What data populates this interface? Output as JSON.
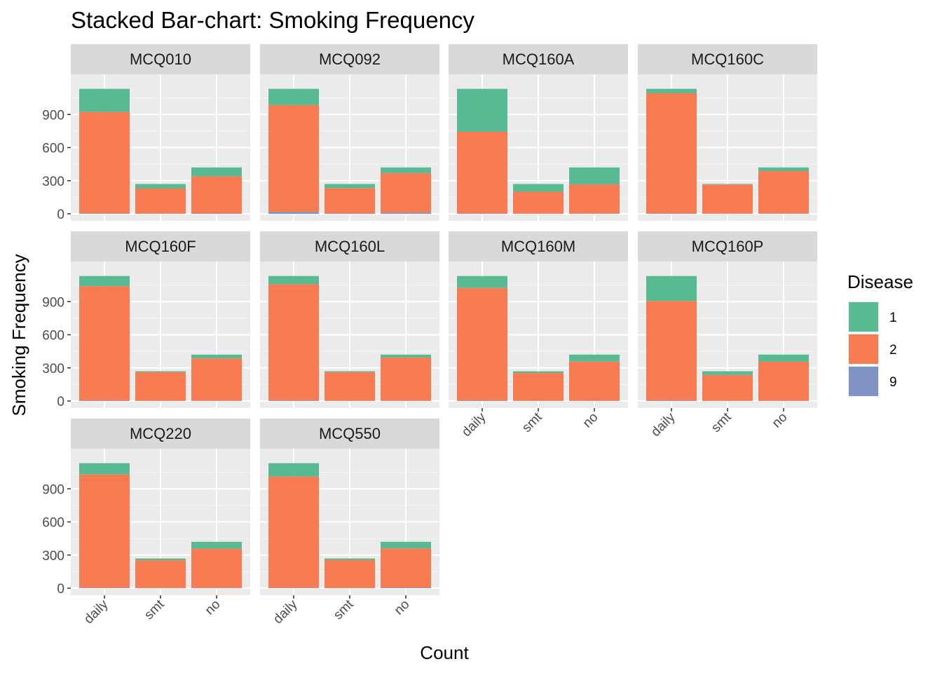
{
  "chart_data": {
    "type": "bar",
    "stacked": true,
    "title": "Stacked Bar-chart: Smoking Frequency",
    "xlabel": "Count",
    "ylabel": "Smoking Frequency",
    "categories": [
      "daily",
      "smt",
      "no"
    ],
    "yticks": [
      0,
      300,
      600,
      900
    ],
    "ylim": [
      0,
      1200
    ],
    "legend": {
      "title": "Disease",
      "position": "right",
      "entries": [
        {
          "label": "1",
          "color": "#57BA93"
        },
        {
          "label": "2",
          "color": "#F97B52"
        },
        {
          "label": "9",
          "color": "#7F93C4"
        }
      ]
    },
    "panels": [
      {
        "name": "MCQ010",
        "series": [
          {
            "name": "9",
            "values": [
              5,
              2,
              3
            ]
          },
          {
            "name": "2",
            "values": [
              918,
              227,
              337
            ]
          },
          {
            "name": "1",
            "values": [
              209,
              41,
              80
            ]
          }
        ]
      },
      {
        "name": "MCQ092",
        "series": [
          {
            "name": "9",
            "values": [
              18,
              3,
              12
            ]
          },
          {
            "name": "2",
            "values": [
              967,
              230,
              357
            ]
          },
          {
            "name": "1",
            "values": [
              147,
              37,
              51
            ]
          }
        ]
      },
      {
        "name": "MCQ160A",
        "series": [
          {
            "name": "9",
            "values": [
              4,
              1,
              2
            ]
          },
          {
            "name": "2",
            "values": [
              739,
              199,
              265
            ]
          },
          {
            "name": "1",
            "values": [
              389,
              70,
              153
            ]
          }
        ]
      },
      {
        "name": "MCQ160C",
        "series": [
          {
            "name": "9",
            "values": [
              4,
              1,
              2
            ]
          },
          {
            "name": "2",
            "values": [
              1088,
              264,
              385
            ]
          },
          {
            "name": "1",
            "values": [
              40,
              5,
              33
            ]
          }
        ]
      },
      {
        "name": "MCQ160F",
        "series": [
          {
            "name": "9",
            "values": [
              4,
              1,
              2
            ]
          },
          {
            "name": "2",
            "values": [
              1036,
              260,
              384
            ]
          },
          {
            "name": "1",
            "values": [
              92,
              9,
              34
            ]
          }
        ]
      },
      {
        "name": "MCQ160L",
        "series": [
          {
            "name": "9",
            "values": [
              4,
              1,
              2
            ]
          },
          {
            "name": "2",
            "values": [
              1054,
              260,
              392
            ]
          },
          {
            "name": "1",
            "values": [
              74,
              9,
              26
            ]
          }
        ]
      },
      {
        "name": "MCQ160M",
        "series": [
          {
            "name": "9",
            "values": [
              4,
              1,
              2
            ]
          },
          {
            "name": "2",
            "values": [
              1020,
              252,
              355
            ]
          },
          {
            "name": "1",
            "values": [
              108,
              16,
              63
            ]
          }
        ]
      },
      {
        "name": "MCQ160P",
        "series": [
          {
            "name": "9",
            "values": [
              4,
              1,
              2
            ]
          },
          {
            "name": "2",
            "values": [
              902,
              235,
              354
            ]
          },
          {
            "name": "1",
            "values": [
              226,
              33,
              64
            ]
          }
        ]
      },
      {
        "name": "MCQ220",
        "series": [
          {
            "name": "9",
            "values": [
              4,
              1,
              2
            ]
          },
          {
            "name": "2",
            "values": [
              1026,
              252,
              356
            ]
          },
          {
            "name": "1",
            "values": [
              102,
              16,
              62
            ]
          }
        ]
      },
      {
        "name": "MCQ550",
        "series": [
          {
            "name": "9",
            "values": [
              4,
              1,
              6
            ]
          },
          {
            "name": "2",
            "values": [
              1007,
              253,
              354
            ]
          },
          {
            "name": "1",
            "values": [
              121,
              15,
              60
            ]
          }
        ]
      }
    ]
  }
}
